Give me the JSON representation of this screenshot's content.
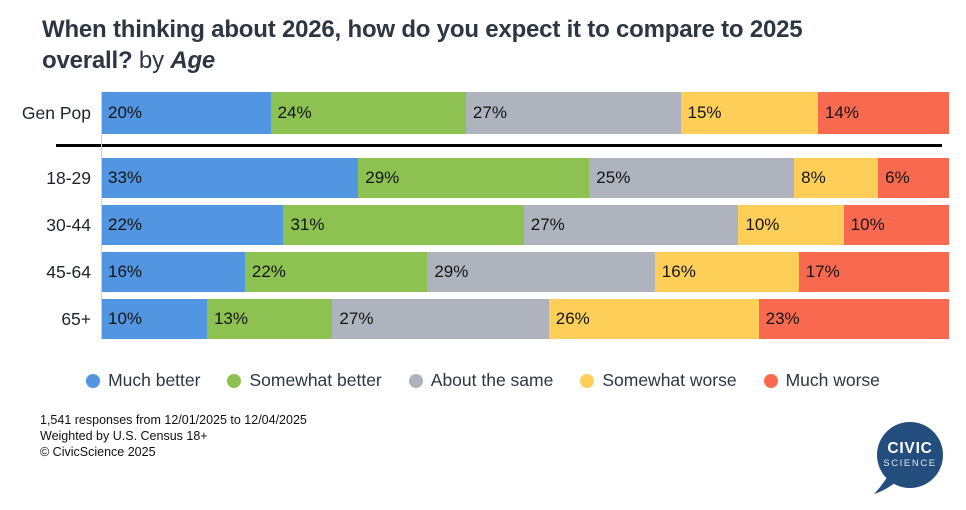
{
  "title": {
    "line1": "When thinking about 2026, how do you expect it to compare to 2025",
    "line2_question": "overall?",
    "line2_connector": " by ",
    "line2_breakdown": "Age"
  },
  "chart_data": {
    "type": "bar",
    "stacked": true,
    "orientation": "horizontal",
    "value_suffix": "%",
    "grid": false,
    "legend_position": "bottom",
    "separator_after_first_category": true,
    "categories": [
      "Gen Pop",
      "18-29",
      "30-44",
      "45-64",
      "65+"
    ],
    "series": [
      {
        "name": "Much better",
        "color": "#5295E0",
        "values": [
          20,
          33,
          22,
          16,
          10
        ]
      },
      {
        "name": "Somewhat better",
        "color": "#8DC152",
        "values": [
          24,
          29,
          31,
          22,
          13
        ]
      },
      {
        "name": "About the same",
        "color": "#AEB3BD",
        "values": [
          27,
          25,
          27,
          29,
          27
        ]
      },
      {
        "name": "Somewhat worse",
        "color": "#FECF58",
        "values": [
          15,
          8,
          10,
          16,
          26
        ]
      },
      {
        "name": "Much worse",
        "color": "#F8694F",
        "values": [
          14,
          6,
          10,
          17,
          23
        ]
      }
    ]
  },
  "footer": {
    "line1": "1,541 responses from 12/01/2025 to 12/04/2025",
    "line2": "Weighted by U.S. Census 18+",
    "line3": "© CivicScience 2025"
  },
  "logo": {
    "line1": "CIVIC",
    "line2": "SCIENCE",
    "color": "#234D7C"
  }
}
